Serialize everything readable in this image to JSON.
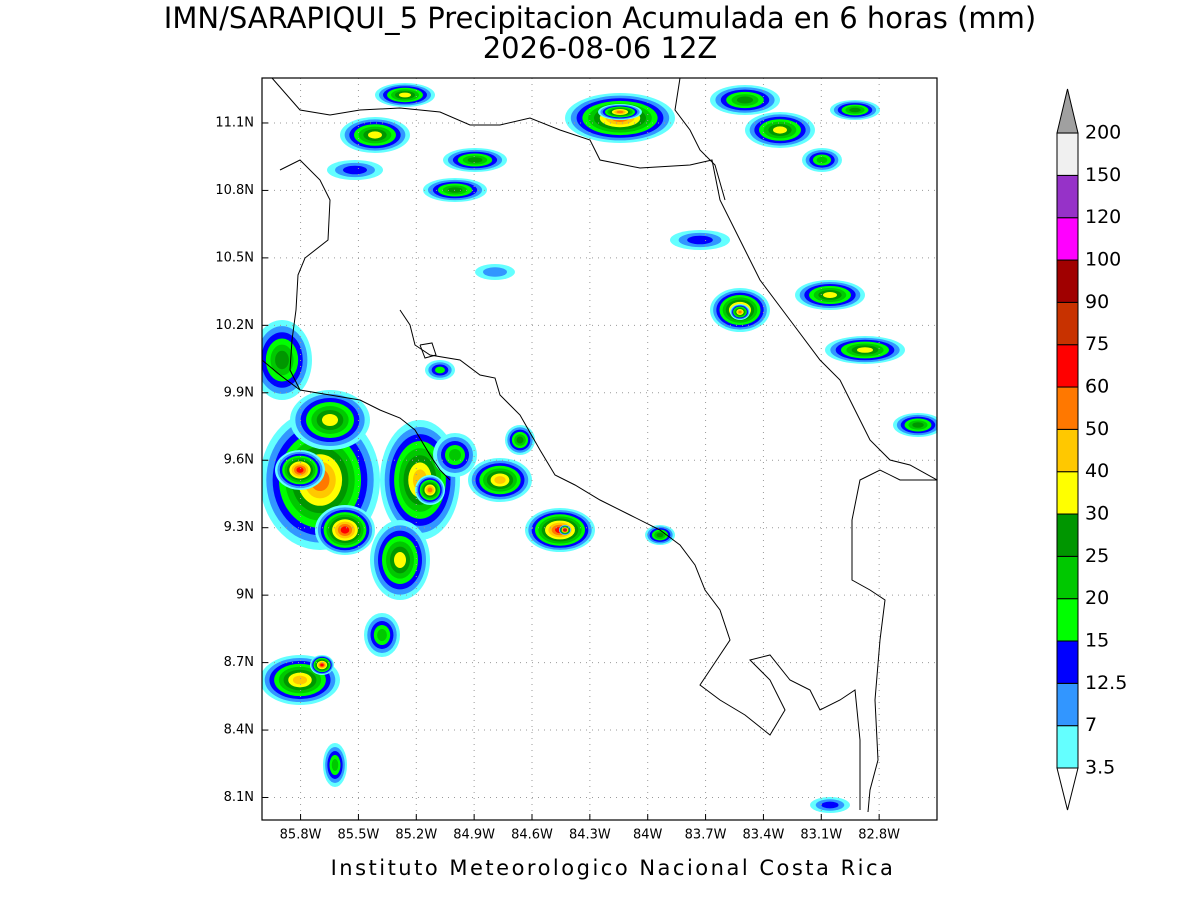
{
  "map": {
    "title": "IMN/SARAPIQUI_5 Precipitacion Acumulada en 6 horas (mm)",
    "subtitle": "2026-08-06 12Z",
    "footer": "Instituto Meteorologico Nacional Costa Rica",
    "latlim": [
      8.0,
      11.3
    ],
    "lonlim": [
      -86.0,
      -82.5
    ],
    "lat_ticks": [
      {
        "value": 11.1,
        "label": "11.1N"
      },
      {
        "value": 10.8,
        "label": "10.8N"
      },
      {
        "value": 10.5,
        "label": "10.5N"
      },
      {
        "value": 10.2,
        "label": "10.2N"
      },
      {
        "value": 9.9,
        "label": "9.9N"
      },
      {
        "value": 9.6,
        "label": "9.6N"
      },
      {
        "value": 9.3,
        "label": "9.3N"
      },
      {
        "value": 9,
        "label": "9N"
      },
      {
        "value": 8.7,
        "label": "8.7N"
      },
      {
        "value": 8.4,
        "label": "8.4N"
      },
      {
        "value": 8.1,
        "label": "8.1N"
      }
    ],
    "lon_ticks": [
      {
        "value": -85.8,
        "label": "85.8W"
      },
      {
        "value": -85.5,
        "label": "85.5W"
      },
      {
        "value": -85.2,
        "label": "85.2W"
      },
      {
        "value": -84.9,
        "label": "84.9W"
      },
      {
        "value": -84.6,
        "label": "84.6W"
      },
      {
        "value": -84.3,
        "label": "84.3W"
      },
      {
        "value": -84,
        "label": "84W"
      },
      {
        "value": -83.7,
        "label": "83.7W"
      },
      {
        "value": -83.4,
        "label": "83.4W"
      },
      {
        "value": -83.1,
        "label": "83.1W"
      },
      {
        "value": -82.8,
        "label": "82.8W"
      }
    ],
    "grid": true
  },
  "colorbar": {
    "levels": [
      3.5,
      7,
      12.5,
      15,
      20,
      25,
      30,
      40,
      50,
      60,
      75,
      90,
      100,
      120,
      150,
      200
    ],
    "colors": [
      "#64ffff",
      "#3296ff",
      "#0000ff",
      "#00ff00",
      "#00c800",
      "#009600",
      "#ffff00",
      "#ffc800",
      "#ff7800",
      "#ff0000",
      "#c83200",
      "#a00000",
      "#ff00ff",
      "#9632c8",
      "#f0f0f0"
    ],
    "over_color": "#a0a0a0",
    "under_color": "#ffffff"
  }
}
